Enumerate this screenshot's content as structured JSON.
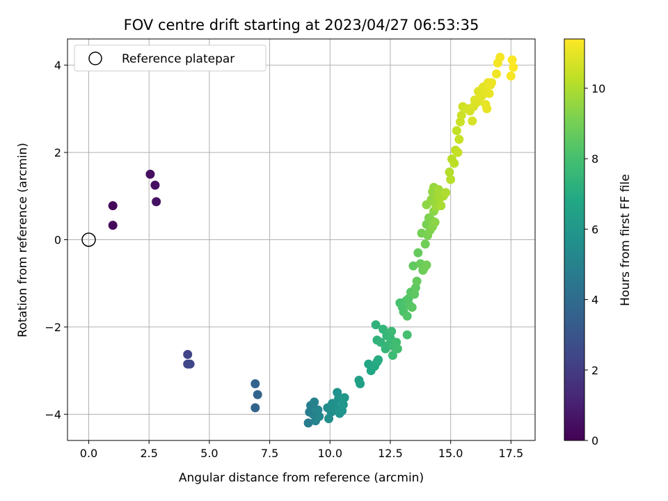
{
  "chart_data": {
    "type": "scatter",
    "title": "FOV centre drift starting at 2023/04/27 06:53:35",
    "xlabel": "Angular distance from reference (arcmin)",
    "ylabel": "Rotation from reference (arcmin)",
    "xlim": [
      -0.88,
      18.5
    ],
    "ylim": [
      -4.6,
      4.6
    ],
    "xticks": [
      0.0,
      2.5,
      5.0,
      7.5,
      10.0,
      12.5,
      15.0,
      17.5
    ],
    "xtick_labels": [
      "0.0",
      "2.5",
      "5.0",
      "7.5",
      "10.0",
      "12.5",
      "15.0",
      "17.5"
    ],
    "yticks": [
      -4,
      -2,
      0,
      2,
      4
    ],
    "ytick_labels": [
      "−4",
      "−2",
      "0",
      "2",
      "4"
    ],
    "grid": true,
    "legend": {
      "position": "top-left",
      "entries": [
        "Reference platepar"
      ]
    },
    "reference_point": {
      "x": 0.0,
      "y": 0.0
    },
    "colorbar": {
      "label": "Hours from first FF file",
      "colormap": "viridis",
      "range": [
        0,
        11.4
      ],
      "ticks": [
        0,
        2,
        4,
        6,
        8,
        10
      ],
      "tick_labels": [
        "0",
        "2",
        "4",
        "6",
        "8",
        "10"
      ]
    },
    "series": [
      {
        "values": [
          [
            1.0,
            0.78,
            0.2
          ],
          [
            1.0,
            0.33,
            0.25
          ],
          [
            2.55,
            1.5,
            0.45
          ],
          [
            2.75,
            1.25,
            0.5
          ],
          [
            2.8,
            0.87,
            0.55
          ],
          [
            4.1,
            -2.63,
            2.3
          ],
          [
            4.1,
            -2.85,
            2.35
          ],
          [
            4.2,
            -2.85,
            2.4
          ],
          [
            6.9,
            -3.3,
            3.6
          ],
          [
            7.0,
            -3.55,
            3.65
          ],
          [
            6.9,
            -3.85,
            3.7
          ],
          [
            9.1,
            -4.2,
            4.7
          ],
          [
            9.15,
            -3.95,
            4.8
          ],
          [
            9.2,
            -3.8,
            4.9
          ],
          [
            9.3,
            -4.0,
            4.95
          ],
          [
            9.35,
            -3.72,
            5.0
          ],
          [
            9.4,
            -4.15,
            5.05
          ],
          [
            9.5,
            -3.9,
            5.1
          ],
          [
            9.55,
            -4.05,
            5.15
          ],
          [
            9.9,
            -3.85,
            5.5
          ],
          [
            9.95,
            -4.1,
            5.55
          ],
          [
            10.05,
            -3.95,
            5.6
          ],
          [
            10.1,
            -3.75,
            5.65
          ],
          [
            10.2,
            -3.82,
            5.7
          ],
          [
            10.3,
            -3.5,
            5.75
          ],
          [
            10.35,
            -3.65,
            5.8
          ],
          [
            10.4,
            -3.98,
            5.85
          ],
          [
            10.5,
            -3.92,
            5.9
          ],
          [
            10.55,
            -3.78,
            5.95
          ],
          [
            10.6,
            -3.62,
            6.0
          ],
          [
            11.2,
            -3.22,
            6.4
          ],
          [
            11.25,
            -3.3,
            6.45
          ],
          [
            11.6,
            -2.85,
            6.75
          ],
          [
            11.7,
            -3.0,
            6.8
          ],
          [
            11.85,
            -2.9,
            6.9
          ],
          [
            11.95,
            -2.8,
            6.95
          ],
          [
            12.0,
            -2.75,
            7.0
          ],
          [
            11.9,
            -1.95,
            7.3
          ],
          [
            11.95,
            -2.3,
            7.35
          ],
          [
            12.1,
            -2.35,
            7.4
          ],
          [
            12.2,
            -2.05,
            7.45
          ],
          [
            12.3,
            -2.5,
            7.5
          ],
          [
            12.35,
            -2.2,
            7.55
          ],
          [
            12.45,
            -2.4,
            7.6
          ],
          [
            12.5,
            -2.25,
            7.65
          ],
          [
            12.55,
            -2.1,
            7.7
          ],
          [
            12.6,
            -2.65,
            7.75
          ],
          [
            12.65,
            -2.45,
            7.8
          ],
          [
            12.75,
            -2.35,
            7.85
          ],
          [
            12.8,
            -2.5,
            7.9
          ],
          [
            13.2,
            -2.18,
            8.0
          ],
          [
            12.9,
            -1.45,
            8.05
          ],
          [
            13.0,
            -1.55,
            8.1
          ],
          [
            13.05,
            -1.65,
            8.15
          ],
          [
            13.15,
            -1.4,
            8.2
          ],
          [
            13.2,
            -1.75,
            8.25
          ],
          [
            13.25,
            -1.35,
            8.3
          ],
          [
            13.3,
            -1.5,
            8.35
          ],
          [
            13.35,
            -1.2,
            8.4
          ],
          [
            13.4,
            -1.55,
            8.45
          ],
          [
            13.5,
            -1.25,
            8.5
          ],
          [
            13.55,
            -1.1,
            8.55
          ],
          [
            13.45,
            -0.6,
            8.6
          ],
          [
            13.6,
            -0.95,
            8.65
          ],
          [
            13.65,
            -0.3,
            8.7
          ],
          [
            13.75,
            -0.55,
            8.75
          ],
          [
            13.85,
            -0.7,
            8.8
          ],
          [
            13.9,
            -0.65,
            8.85
          ],
          [
            13.95,
            -0.1,
            8.9
          ],
          [
            14.0,
            -0.58,
            8.95
          ],
          [
            13.8,
            0.15,
            9.0
          ],
          [
            14.0,
            0.35,
            9.05
          ],
          [
            14.05,
            0.1,
            9.1
          ],
          [
            14.1,
            0.5,
            9.15
          ],
          [
            14.15,
            0.22,
            9.2
          ],
          [
            14.2,
            0.45,
            9.25
          ],
          [
            14.25,
            0.3,
            9.3
          ],
          [
            14.3,
            0.65,
            9.35
          ],
          [
            14.35,
            0.4,
            9.4
          ],
          [
            14.0,
            0.8,
            9.45
          ],
          [
            14.2,
            0.92,
            9.5
          ],
          [
            14.25,
            1.1,
            9.55
          ],
          [
            14.3,
            1.2,
            9.6
          ],
          [
            14.35,
            0.85,
            9.65
          ],
          [
            14.4,
            0.75,
            9.7
          ],
          [
            14.45,
            1.0,
            9.75
          ],
          [
            14.5,
            1.15,
            9.8
          ],
          [
            14.55,
            0.95,
            9.85
          ],
          [
            14.6,
            0.78,
            9.9
          ],
          [
            14.7,
            1.0,
            9.95
          ],
          [
            14.8,
            1.08,
            10.0
          ],
          [
            14.95,
            1.55,
            10.1
          ],
          [
            15.0,
            1.38,
            10.15
          ],
          [
            15.05,
            1.85,
            10.2
          ],
          [
            15.15,
            1.75,
            10.25
          ],
          [
            15.2,
            2.05,
            10.3
          ],
          [
            15.25,
            2.5,
            10.35
          ],
          [
            15.3,
            2.0,
            10.4
          ],
          [
            15.35,
            2.3,
            10.45
          ],
          [
            15.4,
            2.7,
            10.5
          ],
          [
            15.45,
            2.85,
            10.55
          ],
          [
            15.5,
            3.05,
            10.6
          ],
          [
            15.7,
            3.0,
            10.65
          ],
          [
            15.8,
            2.95,
            10.7
          ],
          [
            15.9,
            2.72,
            10.72
          ],
          [
            15.95,
            3.05,
            10.75
          ],
          [
            16.0,
            3.2,
            10.8
          ],
          [
            16.1,
            3.15,
            10.82
          ],
          [
            16.15,
            3.4,
            10.85
          ],
          [
            16.2,
            3.25,
            10.88
          ],
          [
            16.3,
            3.3,
            10.9
          ],
          [
            16.35,
            3.5,
            10.92
          ],
          [
            16.4,
            3.45,
            10.95
          ],
          [
            16.45,
            3.1,
            10.97
          ],
          [
            16.5,
            3.0,
            11.0
          ],
          [
            16.55,
            3.6,
            11.02
          ],
          [
            16.6,
            3.35,
            11.05
          ],
          [
            16.65,
            3.55,
            11.07
          ],
          [
            16.7,
            3.6,
            11.1
          ],
          [
            16.9,
            3.8,
            11.15
          ],
          [
            16.95,
            4.05,
            11.2
          ],
          [
            17.05,
            4.18,
            11.25
          ],
          [
            17.5,
            3.75,
            11.3
          ],
          [
            17.55,
            4.12,
            11.35
          ],
          [
            17.6,
            3.95,
            11.38
          ]
        ]
      }
    ]
  }
}
